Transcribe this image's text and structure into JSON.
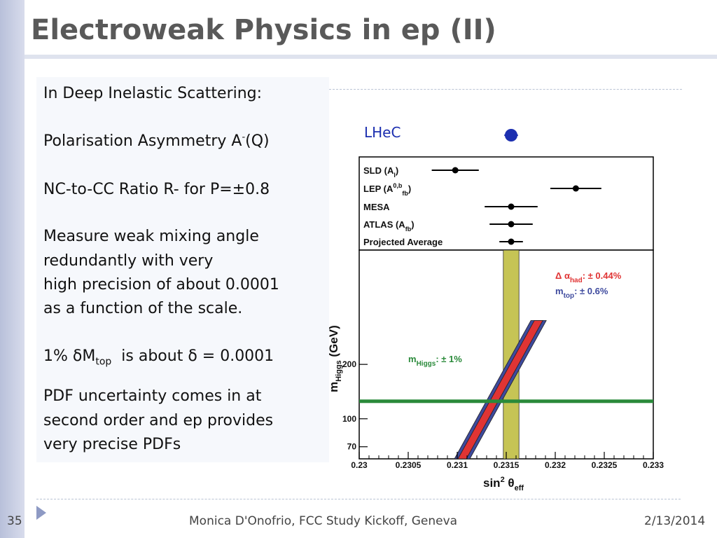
{
  "slide": {
    "title": "Electroweak Physics in ep (II)",
    "number": "35",
    "footer_center": "Monica D'Onofrio, FCC Study Kickoff, Geneva",
    "footer_date": "2/13/2014"
  },
  "text": {
    "l1": "In Deep Inelastic Scattering:",
    "l2a": "Polarisation Asymmetry A",
    "l2sup": "-",
    "l2b": "(Q)",
    "l3": "NC-to-CC Ratio R- for P=±0.8",
    "l4": "Measure weak mixing angle",
    "l5": "redundantly with very",
    "l6": "high precision of about 0.0001",
    "l7": "as a function of the scale.",
    "l8a": "1% δM",
    "l8sub": "top",
    "l8b": "  is about δ = 0.0001",
    "l9": "PDF uncertainty comes in at",
    "l10": "second order and ep provides",
    "l11": "very precise PDFs"
  },
  "chart_data": {
    "type": "scatter",
    "top_label": "LHeC",
    "lhec": {
      "value": 0.23155,
      "error": 5e-05
    },
    "measurements": [
      {
        "name": "SLD (A",
        "sub": "l",
        "sup": "",
        "close": ")",
        "value": 0.23098,
        "low": 0.23074,
        "high": 0.23122
      },
      {
        "name": "LEP (A",
        "sub": "fb",
        "sup": "0,b",
        "close": ")",
        "value": 0.23221,
        "low": 0.23195,
        "high": 0.23247
      },
      {
        "name": "MESA",
        "sub": "",
        "sup": "",
        "close": "",
        "value": 0.23155,
        "low": 0.23128,
        "high": 0.23182
      },
      {
        "name": "ATLAS (A",
        "sub": "fb",
        "sup": "",
        "close": ")",
        "value": 0.23155,
        "low": 0.23133,
        "high": 0.23177
      },
      {
        "name": "Projected Average",
        "sub": "",
        "sup": "",
        "close": "",
        "value": 0.23155,
        "low": 0.23143,
        "high": 0.23167
      }
    ],
    "band_center": [
      0.23147,
      0.23163
    ],
    "sm_band": {
      "x_at_60": 0.23105,
      "x_at_350": 0.23183
    },
    "higgs_mass_line": 125,
    "annotations": {
      "had_prefix": "Δ α",
      "had_sub": "had",
      "had_value": ": ± 0.44%",
      "top_prefix": "m",
      "top_sub": "top",
      "top_value": ": ± 0.6%",
      "higgs_prefix": "m",
      "higgs_sub": "Higgs",
      "higgs_value": ": ± 1%"
    },
    "xlim": [
      0.23,
      0.233
    ],
    "xticks": [
      "0.23",
      "0.2305",
      "0.231",
      "0.2315",
      "0.232",
      "0.2325",
      "0.233"
    ],
    "yticks": [
      70,
      100,
      200
    ],
    "ylabel_main": "m",
    "ylabel_sub": "Higgs",
    "ylabel_unit": " (GeV)",
    "xlabel_main": "sin",
    "xlabel_sup": "2",
    "xlabel_theta": " θ",
    "xlabel_sub": "eff",
    "colors": {
      "band": "#c6c455",
      "red": "#e03434",
      "blue": "#3e4a9e",
      "higgs": "#2a8a3a",
      "points": "#000000",
      "lhec": "#1c2fb0"
    }
  }
}
